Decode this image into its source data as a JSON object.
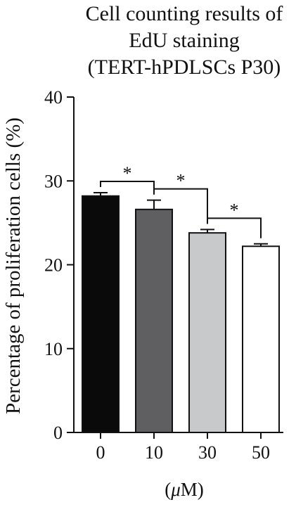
{
  "chart_data": {
    "type": "bar",
    "title_lines": [
      "Cell counting results of",
      "EdU staining",
      "(TERT-hPDLSCs P30)"
    ],
    "ylabel": "Percentage of proliferation cells (%)",
    "xlabel_prefix": "(",
    "xlabel_mu": "μ",
    "xlabel_suffix": "M)",
    "categories": [
      "0",
      "10",
      "30",
      "50"
    ],
    "values": [
      28.2,
      26.6,
      23.8,
      22.2
    ],
    "errors": [
      0.4,
      1.1,
      0.4,
      0.3
    ],
    "ylim": [
      0,
      40
    ],
    "yticks": [
      0,
      10,
      20,
      30,
      40
    ],
    "bar_colors": [
      "#0a0a0a",
      "#5f5f62",
      "#c8c9cb",
      "#ffffff"
    ],
    "significance": [
      {
        "from": 0,
        "to": 1,
        "label": "*"
      },
      {
        "from": 1,
        "to": 2,
        "label": "*"
      },
      {
        "from": 2,
        "to": 3,
        "label": "*"
      }
    ],
    "grid": false,
    "legend": "none"
  }
}
